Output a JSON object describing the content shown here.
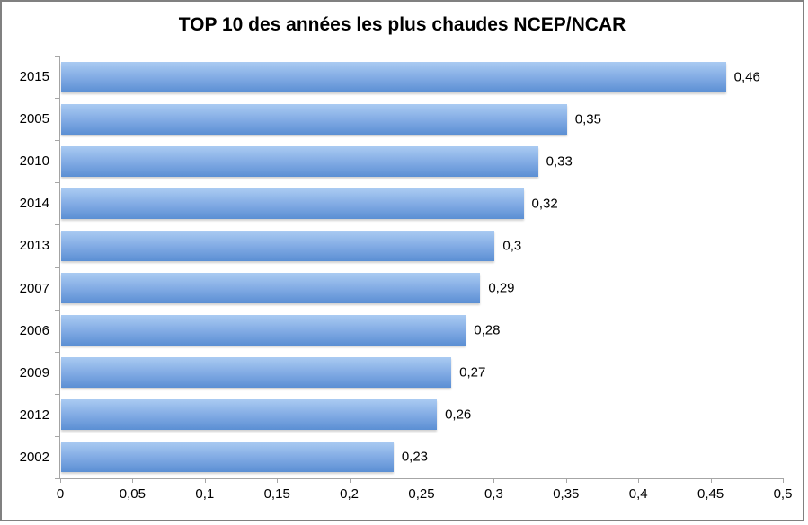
{
  "chart_data": {
    "type": "bar",
    "orientation": "horizontal",
    "title": "TOP 10 des années les plus chaudes NCEP/NCAR",
    "categories": [
      "2015",
      "2005",
      "2010",
      "2014",
      "2013",
      "2007",
      "2006",
      "2009",
      "2012",
      "2002"
    ],
    "values": [
      0.46,
      0.35,
      0.33,
      0.32,
      0.3,
      0.29,
      0.28,
      0.27,
      0.26,
      0.23
    ],
    "value_labels": [
      "0,46",
      "0,35",
      "0,33",
      "0,32",
      "0,3",
      "0,29",
      "0,28",
      "0,27",
      "0,26",
      "0,23"
    ],
    "xlabel": "",
    "ylabel": "",
    "xlim": [
      0,
      0.5
    ],
    "x_ticks": [
      0,
      0.05,
      0.1,
      0.15,
      0.2,
      0.25,
      0.3,
      0.35,
      0.4,
      0.45,
      0.5
    ],
    "x_tick_labels": [
      "0",
      "0,05",
      "0,1",
      "0,15",
      "0,2",
      "0,25",
      "0,3",
      "0,35",
      "0,4",
      "0,45",
      "0,5"
    ],
    "grid": false,
    "legend": "none",
    "colors": {
      "bar_gradient_top": "#aacbf2",
      "bar_gradient_mid": "#7fa9e3",
      "bar_gradient_bottom": "#5b8fd4",
      "axis_line": "#a6a6a6",
      "text": "#000000",
      "frame_border": "#808080",
      "background": "#ffffff"
    }
  }
}
